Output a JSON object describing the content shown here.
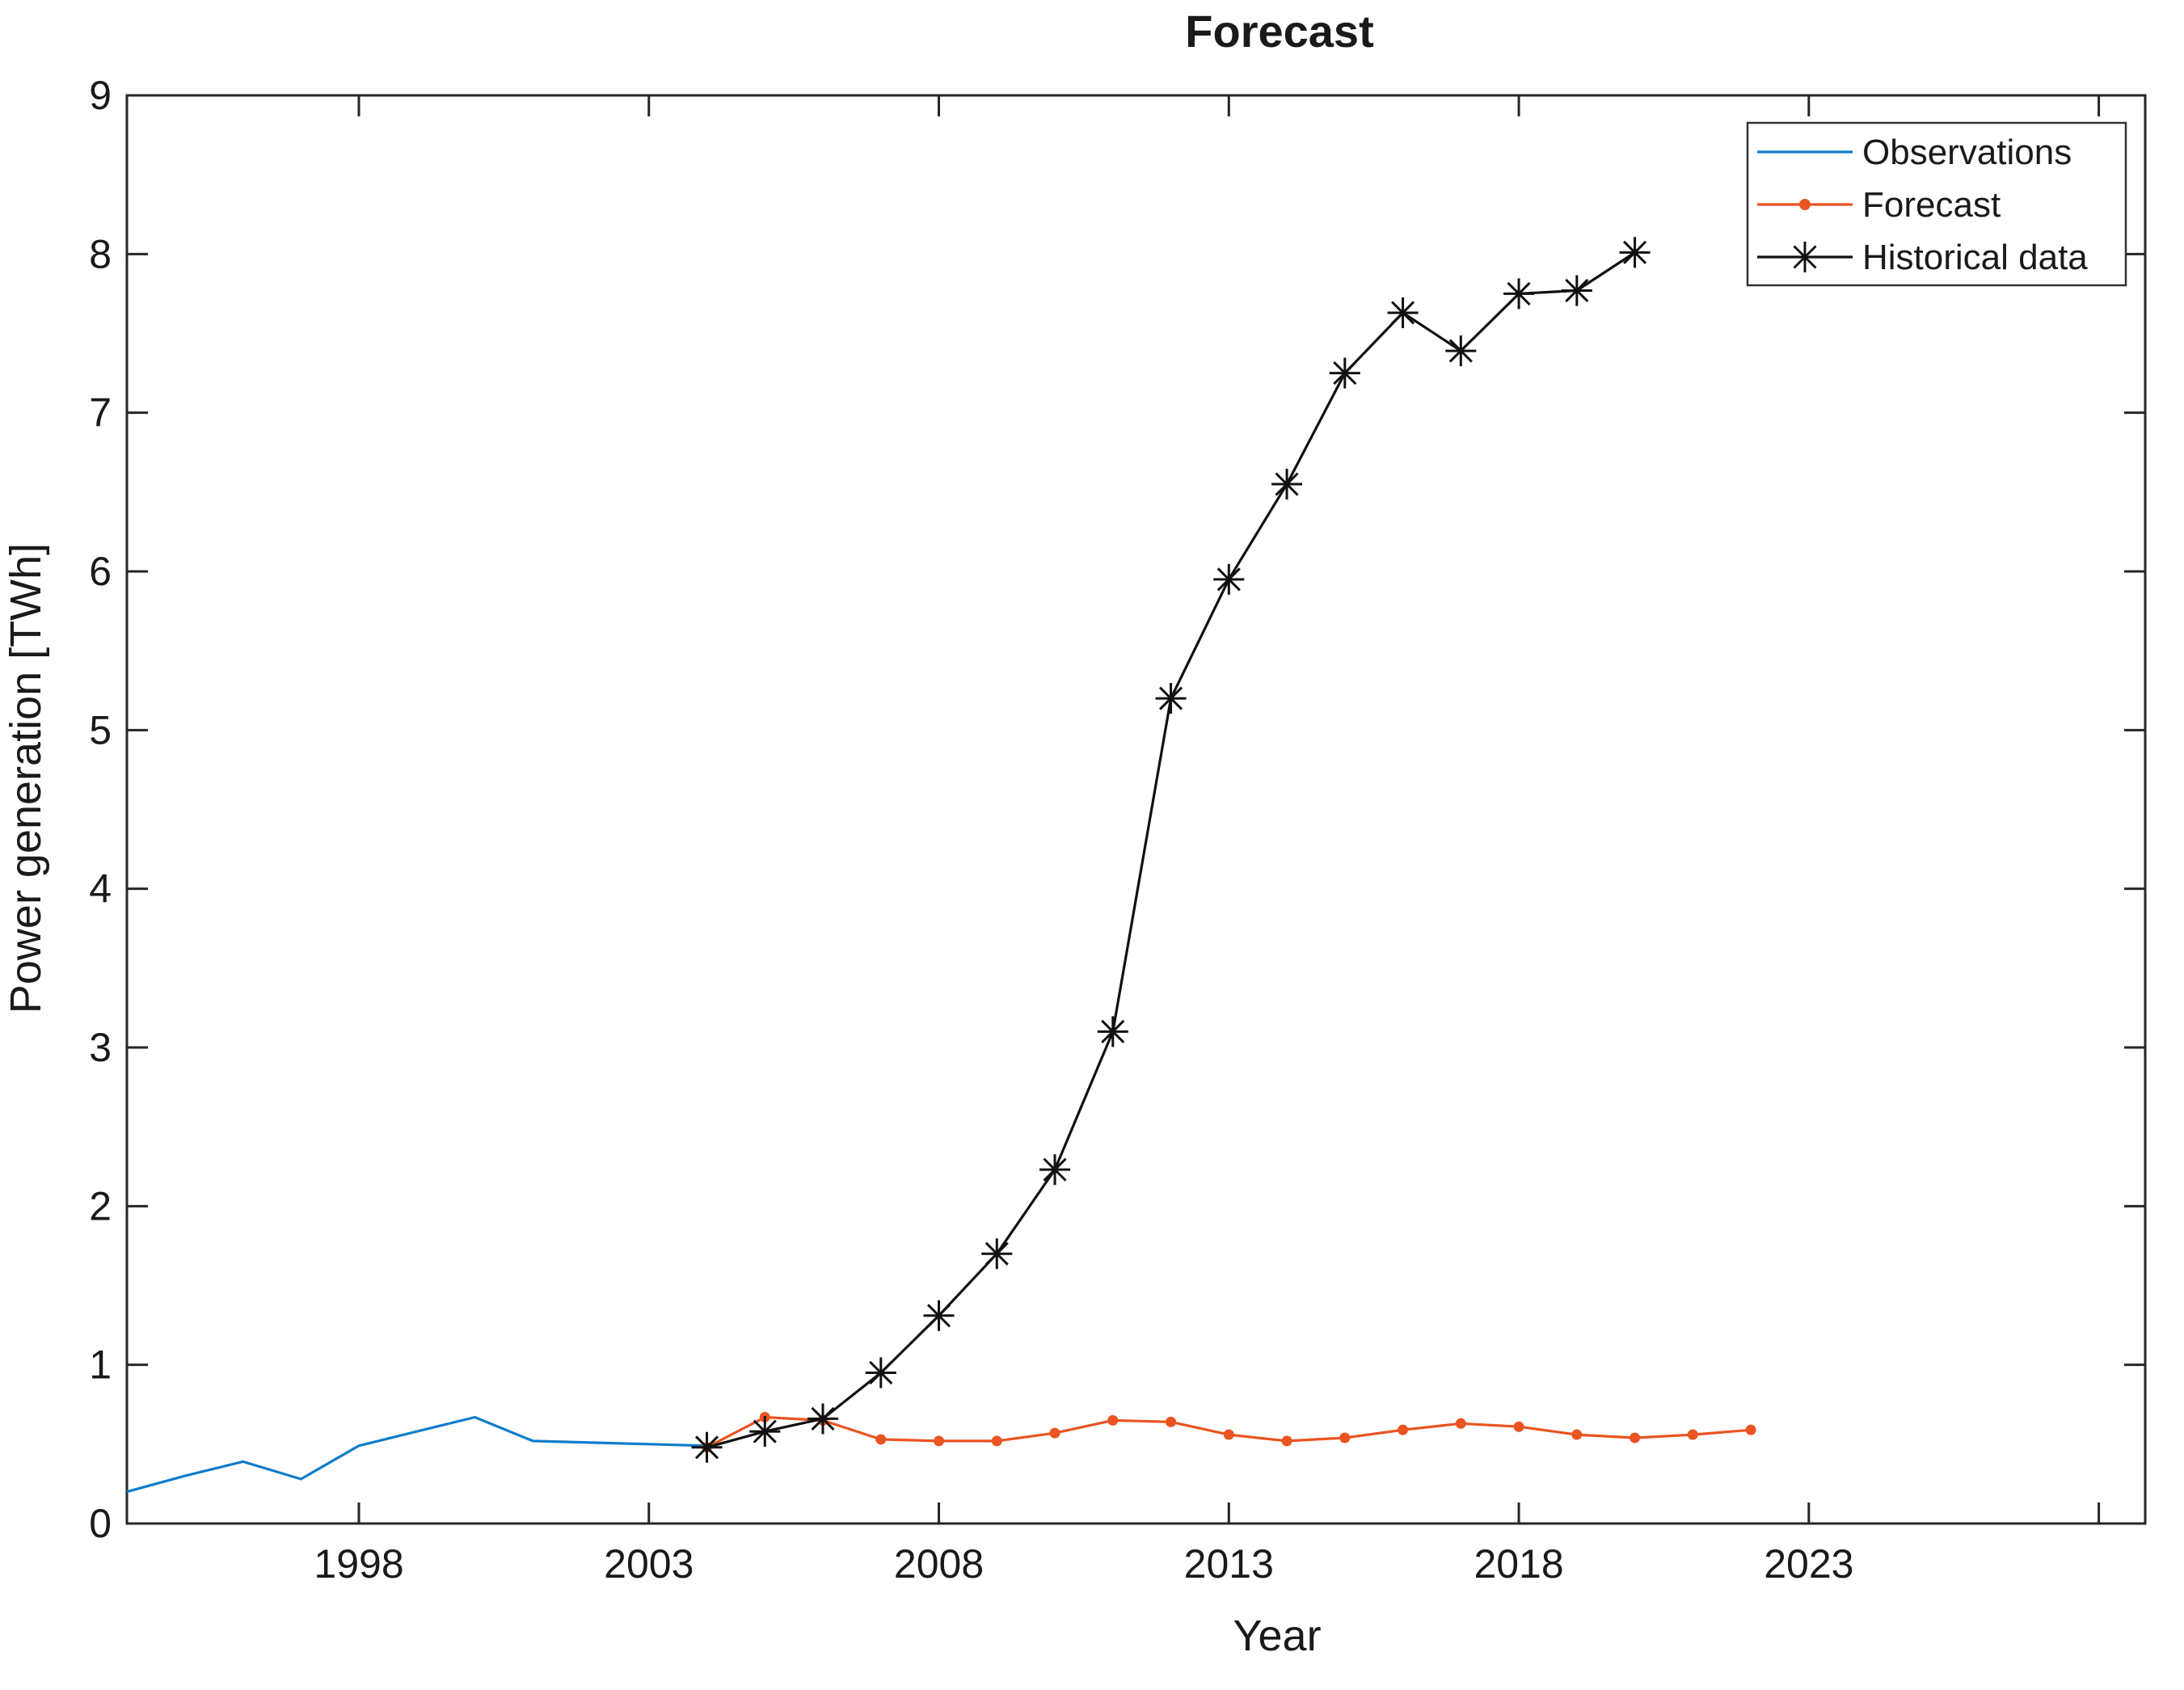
{
  "chart_data": {
    "type": "line",
    "title": "Forecast",
    "xlabel": "Year",
    "ylabel": "Power generation [TWh]",
    "xlim": [
      1994,
      2028.8
    ],
    "ylim": [
      0,
      9
    ],
    "grid": false,
    "xticks": [
      {
        "v": 1998,
        "label": "1998"
      },
      {
        "v": 2003,
        "label": "2003"
      },
      {
        "v": 2008,
        "label": "2008"
      },
      {
        "v": 2013,
        "label": "2013"
      },
      {
        "v": 2018,
        "label": "2018"
      },
      {
        "v": 2023,
        "label": "2023"
      },
      {
        "v": 2028,
        "label": ""
      }
    ],
    "yticks": [
      {
        "v": 0,
        "label": "0"
      },
      {
        "v": 1,
        "label": "1"
      },
      {
        "v": 2,
        "label": "2"
      },
      {
        "v": 3,
        "label": "3"
      },
      {
        "v": 4,
        "label": "4"
      },
      {
        "v": 5,
        "label": "5"
      },
      {
        "v": 6,
        "label": "6"
      },
      {
        "v": 7,
        "label": "7"
      },
      {
        "v": 8,
        "label": "8"
      },
      {
        "v": 9,
        "label": "9"
      }
    ],
    "legend": {
      "position": "top-right",
      "entries": [
        {
          "label": "Observations",
          "color": "#0e7dcb",
          "marker": "none"
        },
        {
          "label": "Forecast",
          "color": "#ea5420",
          "marker": "dot"
        },
        {
          "label": "Historical data",
          "color": "#111111",
          "marker": "asterisk"
        }
      ]
    },
    "series": [
      {
        "name": "Observations",
        "color": "#0e7dcb",
        "marker": "none",
        "x": [
          1994,
          1995,
          1996,
          1997,
          1998,
          1999,
          2000,
          2001,
          2002,
          2003,
          2004
        ],
        "y": [
          0.2,
          0.3,
          0.39,
          0.28,
          0.49,
          0.58,
          0.67,
          0.52,
          0.51,
          0.5,
          0.49
        ]
      },
      {
        "name": "Forecast",
        "color": "#ea5420",
        "marker": "dot",
        "x": [
          2004,
          2005,
          2006,
          2007,
          2008,
          2009,
          2010,
          2011,
          2012,
          2013,
          2014,
          2015,
          2016,
          2017,
          2018,
          2019,
          2020,
          2021,
          2022
        ],
        "y": [
          0.48,
          0.67,
          0.65,
          0.53,
          0.52,
          0.52,
          0.57,
          0.65,
          0.64,
          0.56,
          0.52,
          0.54,
          0.59,
          0.63,
          0.61,
          0.56,
          0.54,
          0.56,
          0.59
        ]
      },
      {
        "name": "Historical data",
        "color": "#111111",
        "marker": "asterisk",
        "x": [
          2004,
          2005,
          2006,
          2007,
          2008,
          2009,
          2010,
          2011,
          2012,
          2013,
          2014,
          2015,
          2016,
          2017,
          2018,
          2019,
          2020
        ],
        "y": [
          0.48,
          0.58,
          0.66,
          0.95,
          1.31,
          1.7,
          2.23,
          3.1,
          5.2,
          5.95,
          6.55,
          7.25,
          7.63,
          7.39,
          7.75,
          7.77,
          8.01
        ]
      }
    ]
  }
}
